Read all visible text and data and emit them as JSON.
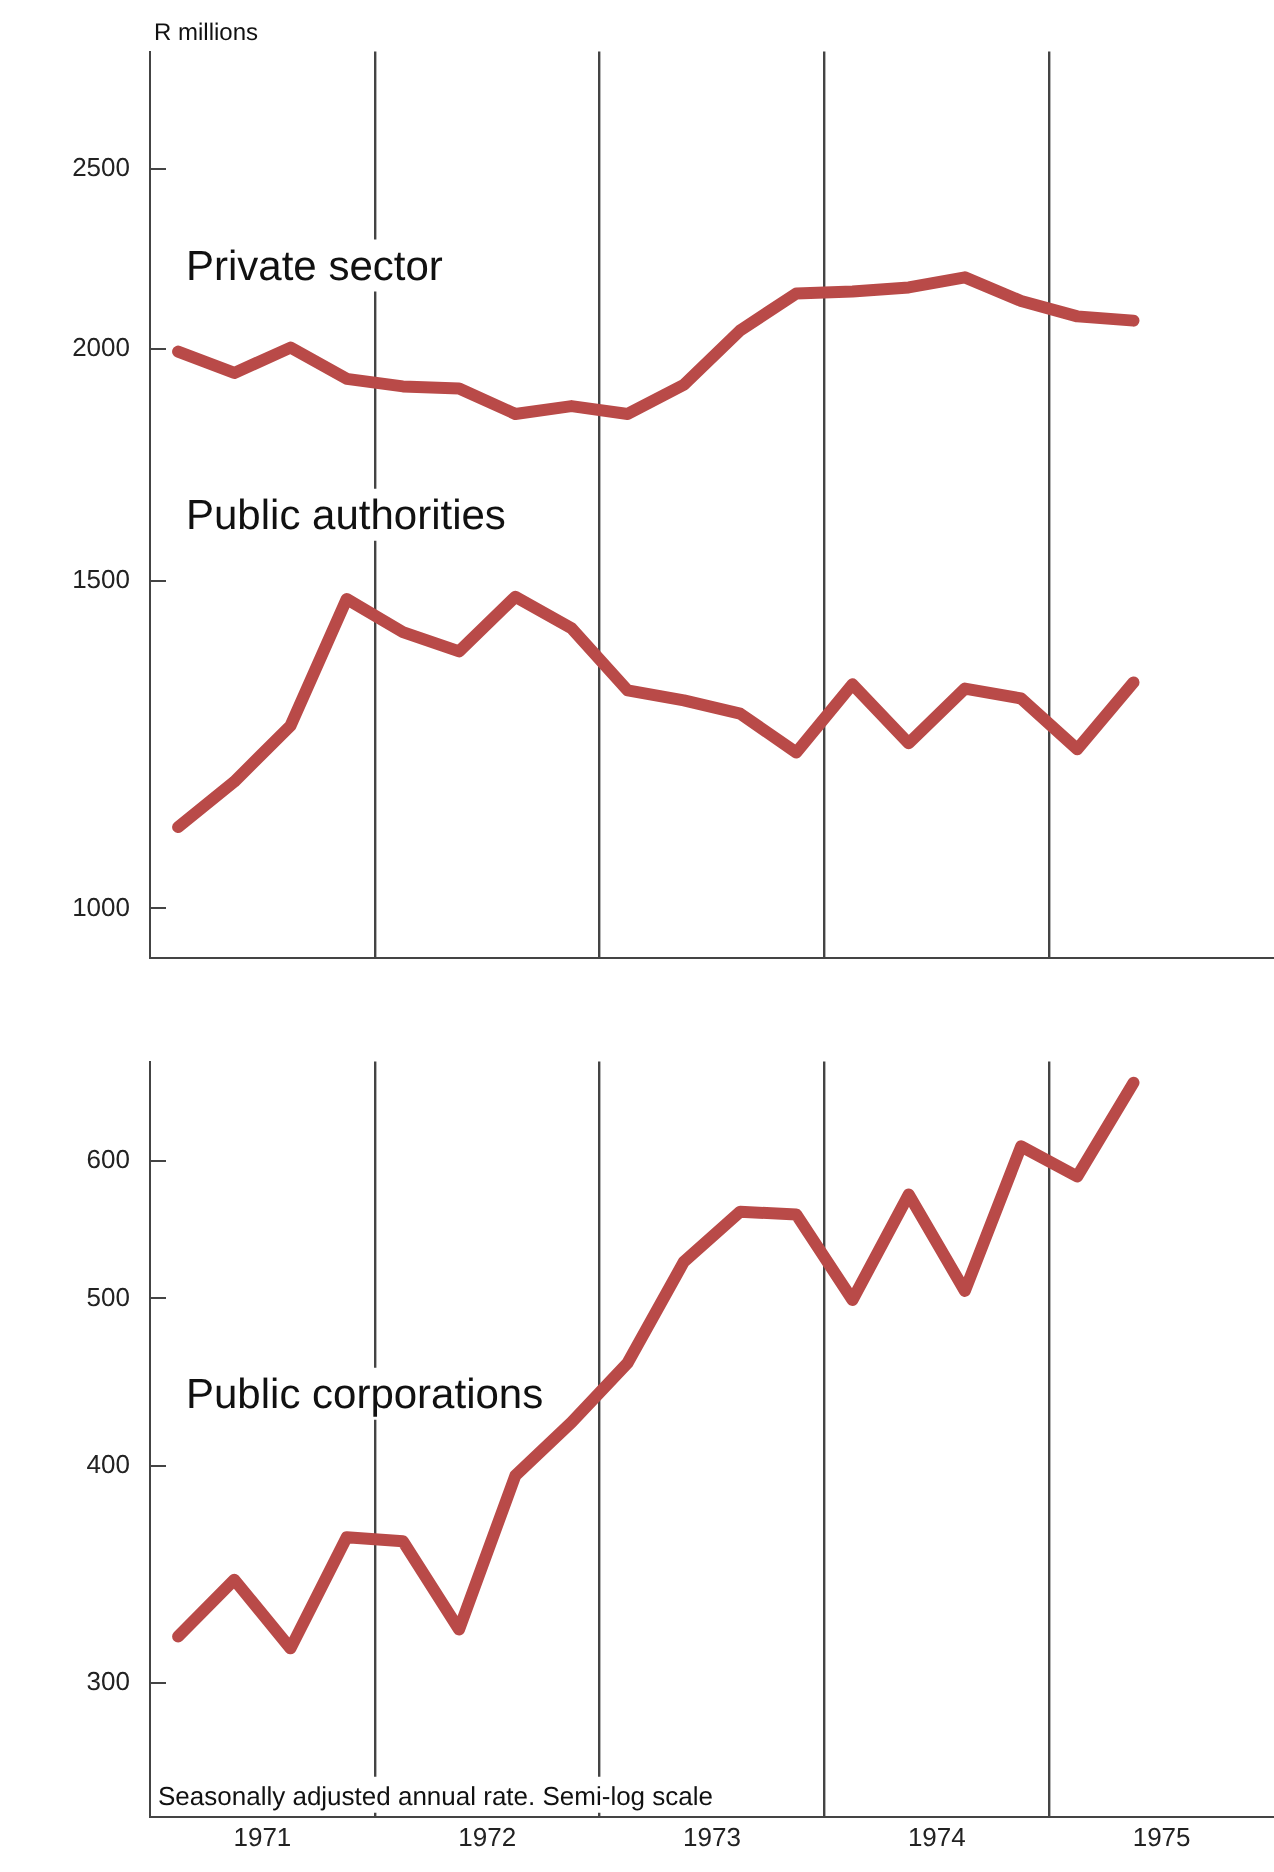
{
  "chart_data": [
    {
      "type": "line",
      "ylabel": "R millions",
      "x": [
        1971.125,
        1971.375,
        1971.625,
        1971.875,
        1972.125,
        1972.375,
        1972.625,
        1972.875,
        1973.125,
        1973.375,
        1973.625,
        1973.875,
        1974.125,
        1974.375,
        1974.625,
        1974.875,
        1975.125,
        1975.375
      ],
      "series": [
        {
          "name": "Private sector",
          "color": "#b94a48",
          "values": [
            1993,
            1941,
            2003,
            1927,
            1909,
            1904,
            1845,
            1863,
            1845,
            1913,
            2046,
            2142,
            2147,
            2158,
            2185,
            2122,
            2082,
            2071
          ]
        },
        {
          "name": "Public authorities",
          "color": "#b94a48",
          "values": [
            1106,
            1170,
            1254,
            1467,
            1408,
            1375,
            1471,
            1415,
            1310,
            1294,
            1273,
            1213,
            1320,
            1227,
            1313,
            1297,
            1218,
            1323
          ]
        }
      ],
      "log": "y",
      "ylim": [
        940,
        2890
      ],
      "yticks": [
        1000,
        1500,
        2000,
        2500
      ],
      "xlim": [
        1971,
        1976
      ],
      "xticks": [
        {
          "value": 1972,
          "label": null
        },
        {
          "value": 1973,
          "label": null
        },
        {
          "value": 1974,
          "label": null
        },
        {
          "value": 1975,
          "label": null
        }
      ],
      "grid": "x",
      "legend": false,
      "tick_labels": "y"
    },
    {
      "type": "line",
      "x": [
        1971.125,
        1971.375,
        1971.625,
        1971.875,
        1972.125,
        1972.375,
        1972.625,
        1972.875,
        1973.125,
        1973.375,
        1973.625,
        1973.875,
        1974.125,
        1974.375,
        1974.625,
        1974.875,
        1975.125,
        1975.375
      ],
      "series": [
        {
          "name": "Public corporations",
          "color": "#b94a48",
          "values": [
            319,
            344,
            314,
            364,
            362,
            322,
            395,
            424,
            459,
            525,
            561,
            559,
            499,
            574,
            505,
            612,
            588,
            666
          ]
        }
      ],
      "log": "y",
      "ylim": [
        251,
        685
      ],
      "yticks": [
        300,
        400,
        500,
        600
      ],
      "xlim": [
        1971,
        1976
      ],
      "xticks": [
        {
          "value": 1971.5,
          "label": "1971"
        },
        {
          "value": 1972,
          "label": null
        },
        {
          "value": 1972.5,
          "label": "1972"
        },
        {
          "value": 1973,
          "label": null
        },
        {
          "value": 1973.5,
          "label": "1973"
        },
        {
          "value": 1974,
          "label": null
        },
        {
          "value": 1974.5,
          "label": "1974"
        },
        {
          "value": 1975,
          "label": null
        },
        {
          "value": 1975.5,
          "label": "1975"
        }
      ],
      "grid": "x",
      "legend": false,
      "annotations": [
        "Seasonally adjusted annual rate. Semi-log scale"
      ]
    }
  ]
}
